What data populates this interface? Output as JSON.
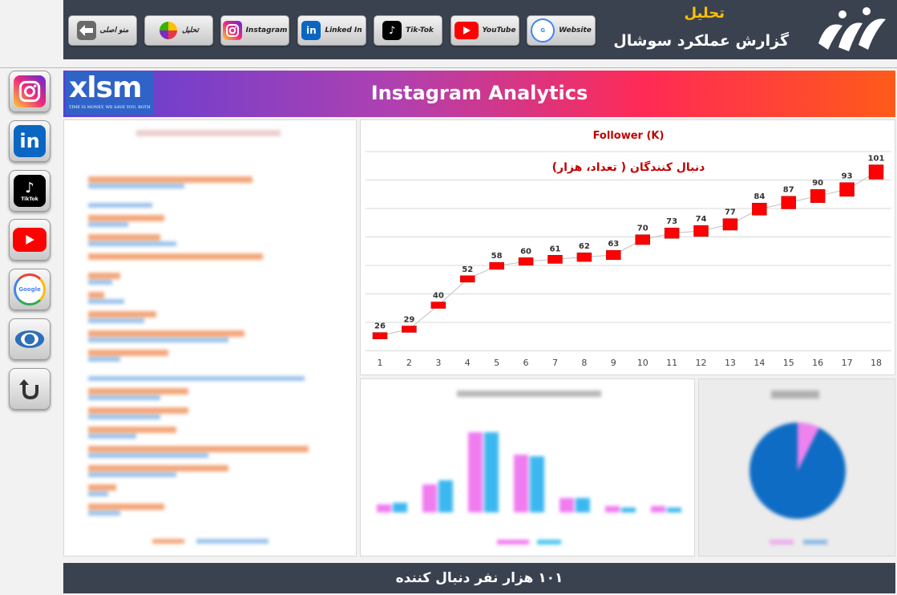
{
  "header": {
    "title_top": "تحلیل",
    "title_main": "گزارش عملکرد سوشال"
  },
  "nav": [
    {
      "label": "منو اصلی",
      "icon": "back-arrow-icon",
      "color": "#555555"
    },
    {
      "label": "تحلیل",
      "icon": "pie-chart-icon",
      "color": "#ffffff"
    },
    {
      "label": "Instagram",
      "icon": "instagram-icon",
      "color": "#c13584"
    },
    {
      "label": "Linked In",
      "icon": "linkedin-icon",
      "color": "#0a66c2"
    },
    {
      "label": "Tik-Tok",
      "icon": "tiktok-icon",
      "color": "#000000"
    },
    {
      "label": "YouTube",
      "icon": "youtube-icon",
      "color": "#ff0000"
    },
    {
      "label": "Website",
      "icon": "google-icon",
      "color": "#ffffff"
    }
  ],
  "sidebar": [
    {
      "icon": "instagram-icon",
      "color": "#c13584"
    },
    {
      "icon": "linkedin-icon",
      "color": "#0a66c2"
    },
    {
      "icon": "tiktok-icon",
      "color": "#000000",
      "label": "TikTok"
    },
    {
      "icon": "youtube-icon",
      "color": "#ff0000"
    },
    {
      "icon": "google-icon",
      "color": "#ffffff",
      "label": "Google"
    },
    {
      "icon": "eye-icon",
      "color": "#2f6fb6"
    },
    {
      "icon": "u-turn-icon",
      "color": "#333333"
    }
  ],
  "banner": {
    "title": "Instagram Analytics",
    "logo_text": "xlsm",
    "logo_tagline": "TIME IS MONEY, WE SAVE YOU, BOTH"
  },
  "chart_data": {
    "type": "line",
    "title": "Follower (K)",
    "subtitle": "دنبال کنندگان ( تعداد، هزار)",
    "x": [
      1,
      2,
      3,
      4,
      5,
      6,
      7,
      8,
      9,
      10,
      11,
      12,
      13,
      14,
      15,
      16,
      17,
      18
    ],
    "series": [
      {
        "values": [
          26,
          29,
          40,
          52,
          58,
          60,
          61,
          62,
          63,
          70,
          73,
          74,
          77,
          84,
          87,
          90,
          93,
          101
        ]
      }
    ],
    "ylim": [
      20,
      110
    ],
    "grid": true,
    "marker_color": "#ff0000"
  },
  "footer": {
    "text": "۱۰۱ هزار نفر دنبال کننده"
  }
}
